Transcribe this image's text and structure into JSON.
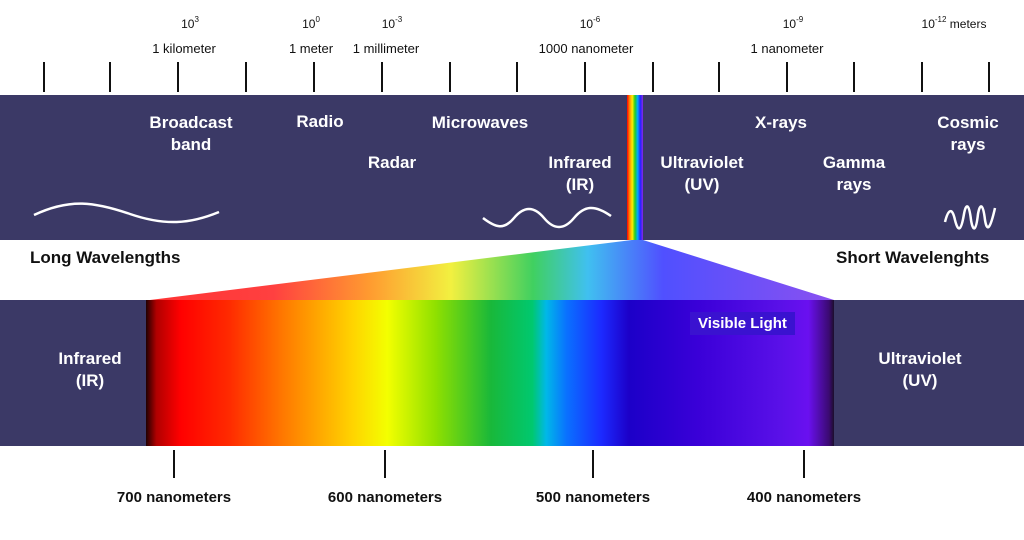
{
  "scale": {
    "exponents": [
      {
        "base": "10",
        "exp": "3",
        "suffix": ""
      },
      {
        "base": "10",
        "exp": "0",
        "suffix": ""
      },
      {
        "base": "10",
        "exp": "-3",
        "suffix": ""
      },
      {
        "base": "10",
        "exp": "-6",
        "suffix": ""
      },
      {
        "base": "10",
        "exp": "-9",
        "suffix": ""
      },
      {
        "base": "10",
        "exp": "-12",
        "suffix": " meters"
      }
    ],
    "unit_labels": [
      "1 kilometer",
      "1 meter",
      "1 millimeter",
      "1000 nanometer",
      "1 nanometer"
    ]
  },
  "top_band": {
    "broadcast": [
      "Broadcast",
      "band"
    ],
    "radio": "Radio",
    "radar": "Radar",
    "microwaves": "Microwaves",
    "infrared": [
      "Infrared",
      "(IR)"
    ],
    "ultraviolet": [
      "Ultraviolet",
      "(UV)"
    ],
    "xrays": "X-rays",
    "gamma": [
      "Gamma",
      "rays"
    ],
    "cosmic": [
      "Cosmic",
      "rays"
    ],
    "color": "#3b3966"
  },
  "sides": {
    "long": "Long Wavelengths",
    "short": "Short Wavelenghts"
  },
  "bottom_band": {
    "infrared": [
      "Infrared",
      "(IR)"
    ],
    "ultraviolet": [
      "Ultraviolet",
      "(UV)"
    ],
    "visible": "Visible Light"
  },
  "nanometers": [
    "700 nanometers",
    "600 nanometers",
    "500 nanometers",
    "400 nanometers"
  ]
}
